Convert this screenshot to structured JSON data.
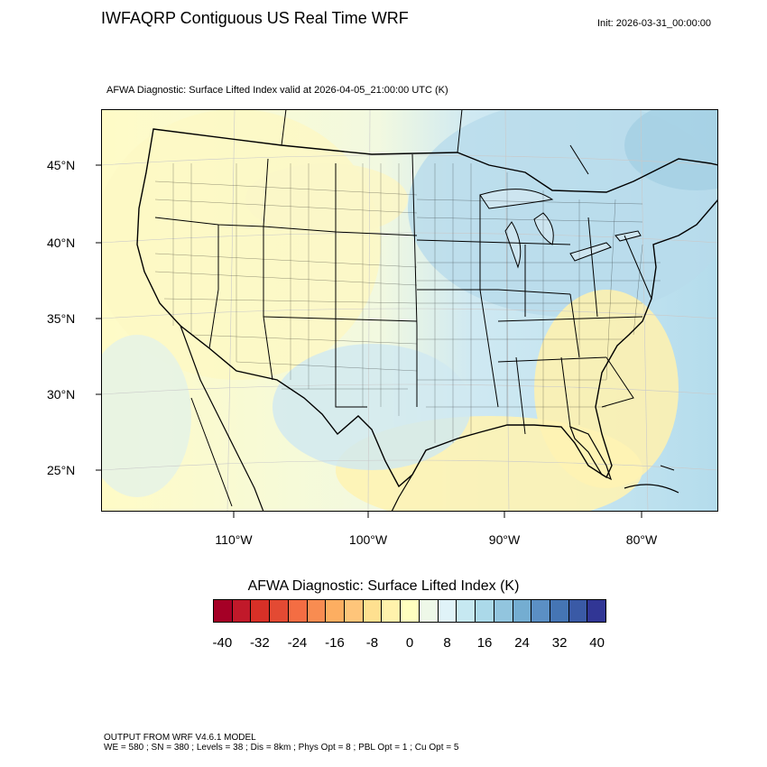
{
  "title": "IWFAQRP Contiguous US Real Time WRF",
  "init_label": "Init: 2026-03-31_00:00:00",
  "subtitle": "AFWA Diagnostic: Surface Lifted Index valid at 2026-04-05_21:00:00 UTC   (K)",
  "lat_labels": [
    "45°N",
    "40°N",
    "35°N",
    "30°N",
    "25°N"
  ],
  "lon_labels": [
    "110°W",
    "100°W",
    "90°W",
    "80°W"
  ],
  "colorbar": {
    "title": "AFWA Diagnostic: Surface Lifted Index  (K)",
    "tick_labels": [
      "-40",
      "-32",
      "-24",
      "-16",
      "-8",
      "0",
      "8",
      "16",
      "24",
      "32",
      "40"
    ],
    "colors": [
      "#a50026",
      "#c1192a",
      "#d73027",
      "#e34a33",
      "#f46d43",
      "#f88c51",
      "#fdae61",
      "#fec57a",
      "#fee090",
      "#fff2ac",
      "#ffffbf",
      "#eef8e8",
      "#e0f3f8",
      "#c6e8f1",
      "#abd9e9",
      "#92c5de",
      "#74add1",
      "#5b8fc4",
      "#4575b4",
      "#3a5aa6",
      "#313695"
    ]
  },
  "footer": {
    "line1": "OUTPUT FROM WRF V4.6.1 MODEL",
    "line2": "WE = 580 ; SN = 380 ; Levels = 38 ; Dis = 8km ; Phys Opt = 8 ; PBL Opt = 1 ; Cu Opt = 5"
  }
}
